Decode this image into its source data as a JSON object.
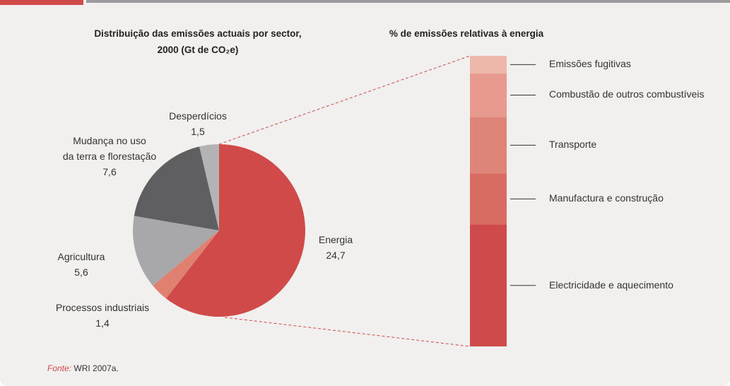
{
  "chart_data": [
    {
      "type": "pie",
      "title": "Distribuição das emissões actuais por sector,\n2000 (Gt de CO₂e)",
      "categories": [
        "Energia",
        "Processos industriais",
        "Agricultura",
        "Mudança no uso\nda terra e florestação",
        "Desperdícios"
      ],
      "values": [
        24.7,
        1.4,
        5.6,
        7.6,
        1.5
      ],
      "value_labels": [
        "24,7",
        "1,4",
        "5,6",
        "7,6",
        "1,5"
      ],
      "colors": [
        "#d04a4a",
        "#e08070",
        "#a8a7a9",
        "#5f5e60",
        "#b3b2b4"
      ]
    },
    {
      "type": "stacked_bar",
      "title": "% de emissões relativas à energia",
      "series": [
        {
          "name": "Electricidade e aquecimento",
          "color": "#cf4a4a",
          "values": [
            42
          ]
        },
        {
          "name": "Manufactura e construção",
          "color": "#d96c62",
          "values": [
            17.5
          ]
        },
        {
          "name": "Transporte",
          "color": "#df8478",
          "values": [
            19.5
          ]
        },
        {
          "name": "Combustão de outros combustíveis",
          "color": "#e89a8e",
          "values": [
            15
          ]
        },
        {
          "name": "Emissões fugitivas",
          "color": "#edb8aa",
          "values": [
            6
          ]
        }
      ]
    }
  ],
  "source_label": "Fonte:",
  "source": "WRI 2007a."
}
